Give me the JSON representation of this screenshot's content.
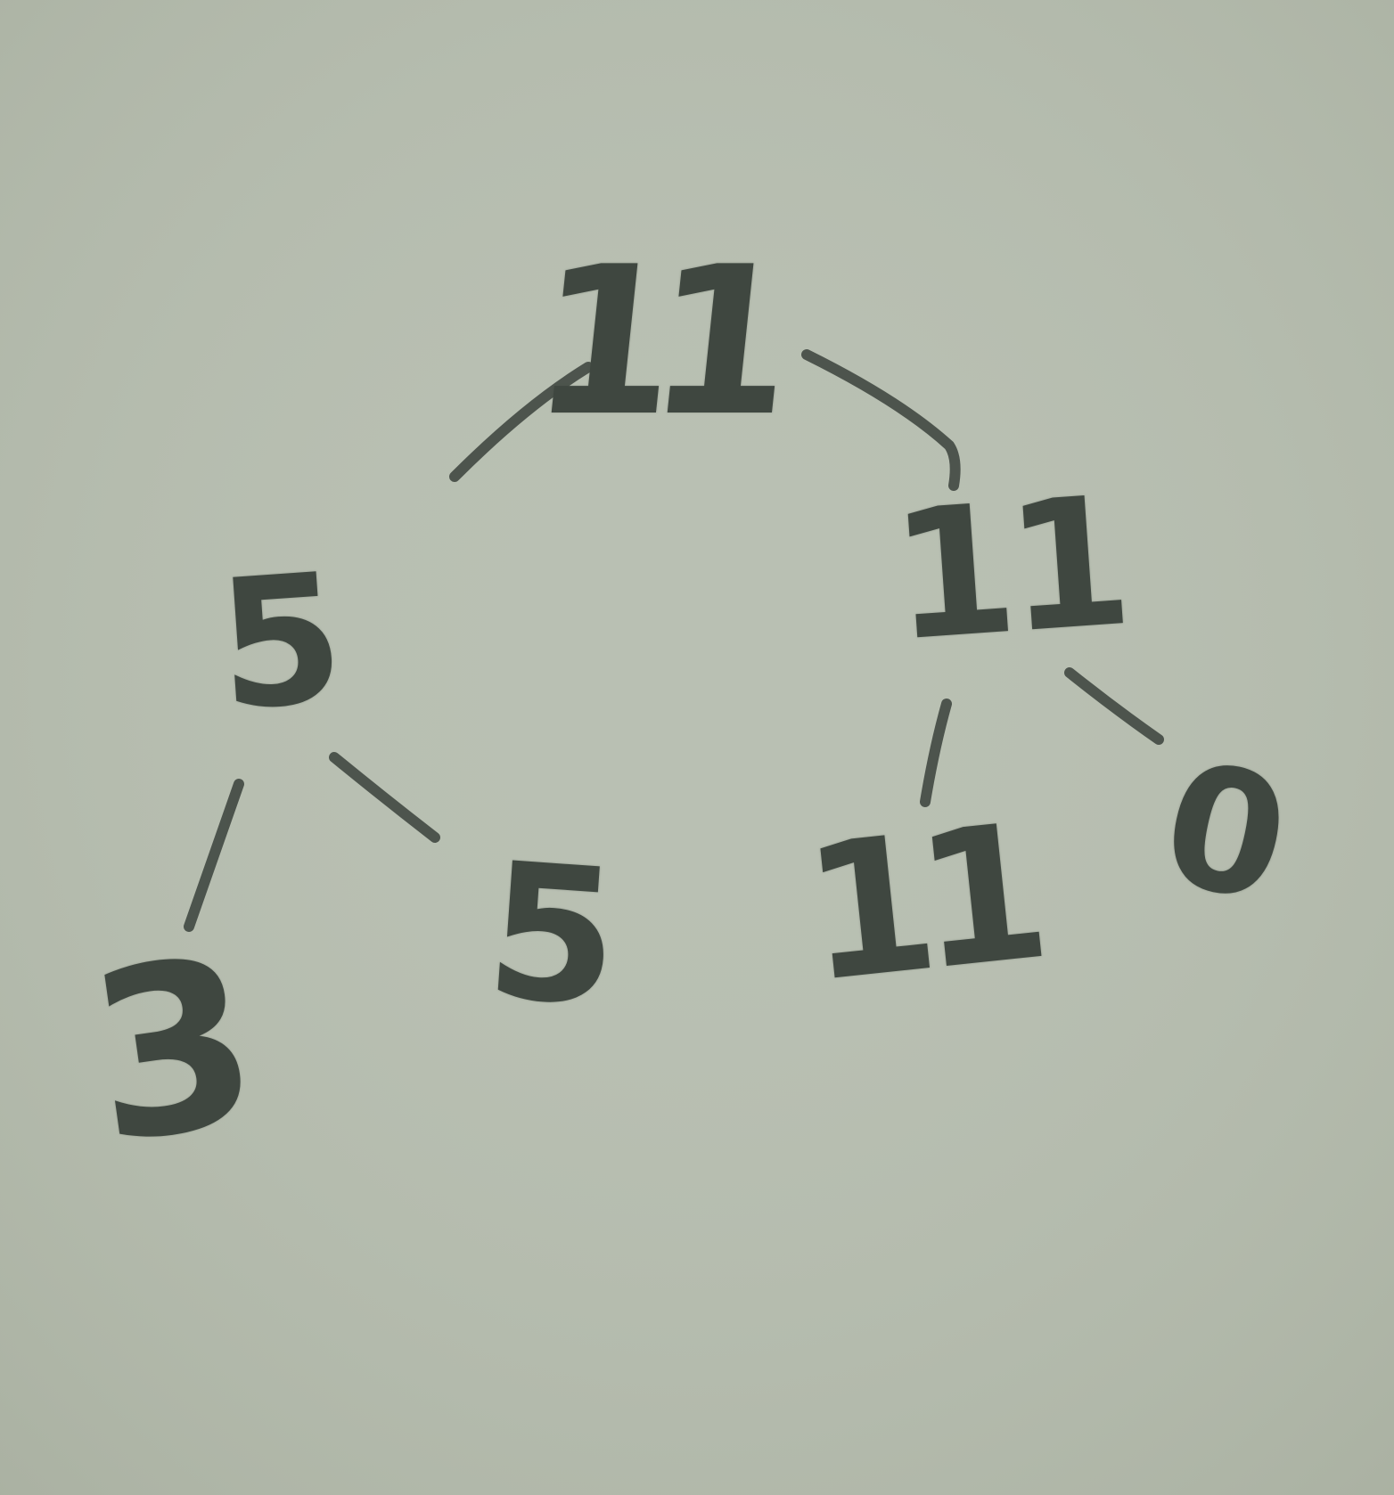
{
  "colors": {
    "paper": "#b9c0b3",
    "ink": "#3f4740"
  },
  "tree": {
    "root": {
      "label": "11"
    },
    "left": {
      "label": "5"
    },
    "right": {
      "label": "11"
    },
    "left_left": {
      "label": "3"
    },
    "left_right": {
      "label": "5"
    },
    "right_left": {
      "label": "11"
    },
    "right_right": {
      "label": "0"
    }
  }
}
